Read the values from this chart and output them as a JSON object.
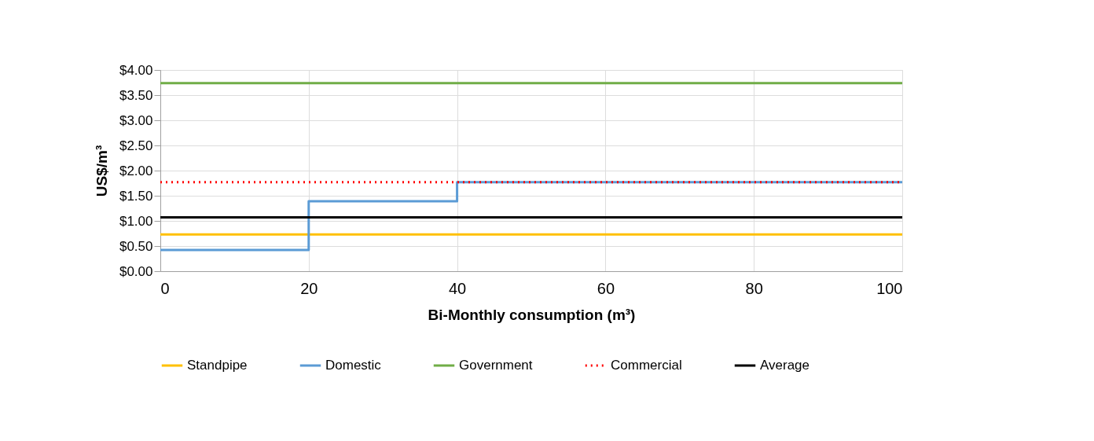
{
  "chart_data": {
    "type": "line",
    "xlabel": "Bi-Monthly consumption (m³)",
    "ylabel": "US$/m³",
    "xlim": [
      0,
      100
    ],
    "xticks": [
      0,
      20,
      40,
      60,
      80,
      100
    ],
    "ylim": [
      0,
      4
    ],
    "yticks": [
      {
        "value": 0,
        "label": "$0.00"
      },
      {
        "value": 0.5,
        "label": "$0.50"
      },
      {
        "value": 1,
        "label": "$1.00"
      },
      {
        "value": 1.5,
        "label": "$1.50"
      },
      {
        "value": 2,
        "label": "$2.00"
      },
      {
        "value": 2.5,
        "label": "$2.50"
      },
      {
        "value": 3,
        "label": "$3.00"
      },
      {
        "value": 3.5,
        "label": "$3.50"
      },
      {
        "value": 4,
        "label": "$4.00"
      }
    ],
    "grid": true,
    "legend": "bottom",
    "marker": "none",
    "series": [
      {
        "name": "Standpipe",
        "color": "#ffc000",
        "x": [
          0,
          100
        ],
        "values": [
          0.73,
          0.73
        ]
      },
      {
        "name": "Domestic",
        "type": "step",
        "color": "#5b9bd5",
        "x": [
          0,
          20,
          40,
          100
        ],
        "values": [
          0.42,
          1.39,
          1.77,
          1.77
        ]
      },
      {
        "name": "Government",
        "color": "#70ad47",
        "x": [
          0,
          100
        ],
        "values": [
          3.74,
          3.74
        ]
      },
      {
        "name": "Commercial",
        "line_style": "dotted",
        "color": "#ff0000",
        "x": [
          0,
          100
        ],
        "values": [
          1.77,
          1.77
        ]
      },
      {
        "name": "Average",
        "color": "#000000",
        "x": [
          0,
          100
        ],
        "values": [
          1.07,
          1.07
        ]
      }
    ]
  }
}
